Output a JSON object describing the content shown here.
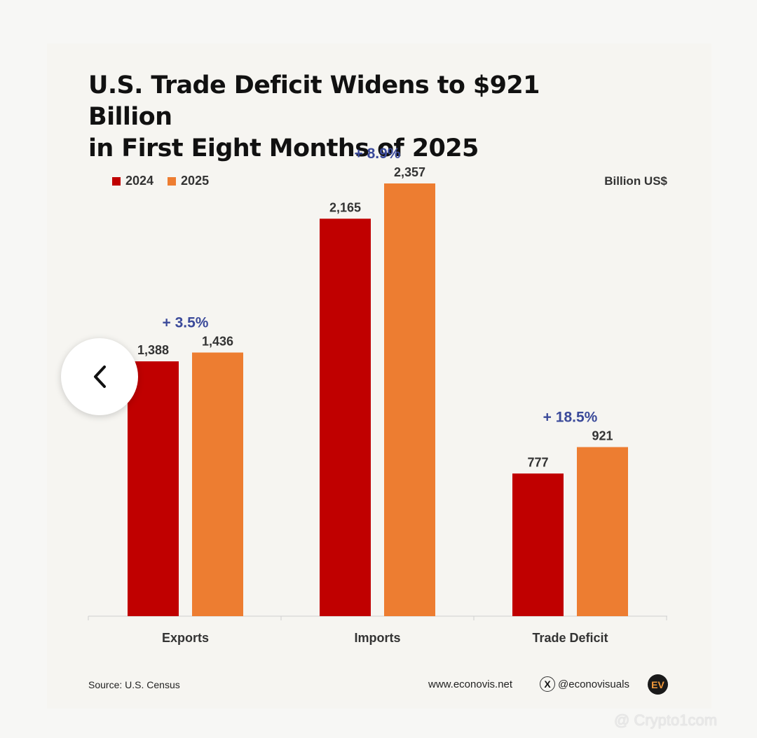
{
  "chart_data": {
    "type": "bar",
    "title_line1": "U.S. Trade Deficit Widens to $921 Billion",
    "title_line2": "in First Eight Months of 2025",
    "unit_label": "Billion US$",
    "categories": [
      "Exports",
      "Imports",
      "Trade Deficit"
    ],
    "series": [
      {
        "name": "2024",
        "values": [
          1388,
          2165,
          777
        ],
        "labels": [
          "1,388",
          "2,165",
          "777"
        ],
        "color": "#c00000"
      },
      {
        "name": "2025",
        "values": [
          1436,
          2357,
          921
        ],
        "labels": [
          "1,436",
          "2,357",
          "921"
        ],
        "color": "#ed7d31"
      }
    ],
    "changes": [
      "+ 3.5%",
      "+ 8.9%",
      "+ 18.5%"
    ],
    "change_color": "#3b4a9a",
    "ylim": [
      0,
      2357
    ],
    "legend_position": "top-left",
    "grid": false
  },
  "footer": {
    "source": "Source: U.S. Census",
    "website": "www.econovis.net",
    "x_handle": "@econovisuals",
    "x_icon_glyph": "X",
    "logo_text": "EV"
  },
  "nav": {
    "back_icon": "chevron-left-icon"
  },
  "watermark": {
    "text": "@ Crypto1com"
  }
}
